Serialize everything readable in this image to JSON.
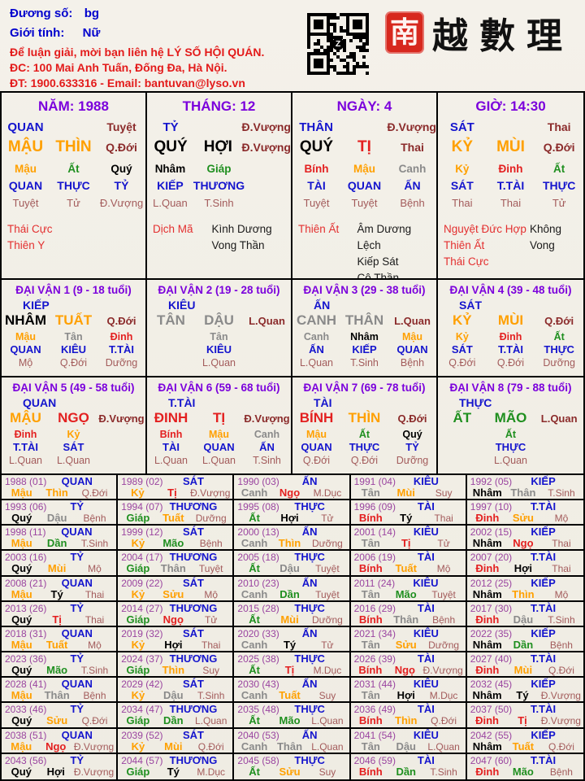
{
  "header": {
    "duong_so_label": "Đương số:",
    "duong_so_value": "bg",
    "gioi_tinh_label": "Giới tính:",
    "gioi_tinh_value": "Nữ",
    "contact_line1": "Để luận giải, mời bạn liên hệ LÝ SỐ HỘI QUÁN.",
    "contact_line2": "ĐC: 100 Mai Anh Tuấn, Đống Đa, Hà Nội.",
    "contact_line3": "ĐT: 1900.633316 - Email: bantuvan@lyso.vn",
    "logo_seal_char": "南",
    "logo_chars": "越數理"
  },
  "colors": {
    "wood": "#1F8F1F",
    "fire": "#E32020",
    "earth": "#FFA000",
    "metal": "#8A8A8A",
    "water": "#000000"
  },
  "element_of": {
    "Giáp": "wood",
    "Ất": "wood",
    "ẤT": "wood",
    "Bính": "fire",
    "BÍNH": "fire",
    "Đinh": "fire",
    "ĐINH": "fire",
    "Mậu": "earth",
    "MẬU": "earth",
    "Kỷ": "earth",
    "KỶ": "earth",
    "Canh": "metal",
    "CANH": "metal",
    "Tân": "metal",
    "TÂN": "metal",
    "Nhâm": "water",
    "NHÂM": "water",
    "Quý": "water",
    "QUÝ": "water",
    "Tý": "water",
    "Sửu": "earth",
    "Dần": "wood",
    "Mão": "wood",
    "MÃO": "wood",
    "Thìn": "earth",
    "THÌN": "earth",
    "Tị": "fire",
    "TỊ": "fire",
    "Ngọ": "fire",
    "NGỌ": "fire",
    "Mùi": "earth",
    "MÙI": "earth",
    "Thân": "metal",
    "THÂN": "metal",
    "Dậu": "metal",
    "DẬU": "metal",
    "Tuất": "earth",
    "TUẤT": "earth",
    "Hợi": "water",
    "HỢI": "water"
  },
  "pillars": [
    {
      "title": "NĂM: 1988",
      "god": "QUAN",
      "top_stage": "Tuyệt",
      "stem": "MẬU",
      "branch": "THÌN",
      "stage": "Q.Đới",
      "hidden": [
        {
          "s": "Mậu",
          "g": "QUAN",
          "st": "Tuyệt"
        },
        {
          "s": "Ất",
          "g": "THỰC",
          "st": "Tử"
        },
        {
          "s": "Quý",
          "g": "TỶ",
          "st": "Đ.Vượng"
        }
      ],
      "stars_red": [
        "Thái Cực",
        "Thiên Y"
      ],
      "stars_black": []
    },
    {
      "title": "THÁNG: 12",
      "god": "TỶ",
      "top_stage": "Đ.Vượng",
      "stem": "QUÝ",
      "branch": "HỢI",
      "stage": "Đ.Vượng",
      "hidden": [
        {
          "s": "Nhâm",
          "g": "KIẾP",
          "st": "L.Quan"
        },
        {
          "s": "Giáp",
          "g": "THƯƠNG",
          "st": "T.Sinh"
        },
        null
      ],
      "stars_red": [
        "Dịch Mã"
      ],
      "stars_black": [
        "Kình Dương",
        "Vong Thần"
      ]
    },
    {
      "title": "NGÀY: 4",
      "god": "THÂN",
      "top_stage": "Đ.Vượng",
      "stem": "QUÝ",
      "branch": "TỊ",
      "stage": "Thai",
      "hidden": [
        {
          "s": "Bính",
          "g": "TÀI",
          "st": "Tuyệt"
        },
        {
          "s": "Mậu",
          "g": "QUAN",
          "st": "Tuyệt"
        },
        {
          "s": "Canh",
          "g": "ẤN",
          "st": "Bệnh"
        }
      ],
      "stars_red": [
        "Thiên Ất"
      ],
      "stars_black": [
        "Âm Dương Lệch",
        "Kiếp Sát",
        "Cô Thần"
      ]
    },
    {
      "title": "GIỜ: 14:30",
      "god": "SÁT",
      "top_stage": "Thai",
      "stem": "KỶ",
      "branch": "MÙI",
      "stage": "Q.Đới",
      "hidden": [
        {
          "s": "Kỷ",
          "g": "SÁT",
          "st": "Thai"
        },
        {
          "s": "Đinh",
          "g": "T.TÀI",
          "st": "Thai"
        },
        {
          "s": "Ất",
          "g": "THỰC",
          "st": "Tử"
        }
      ],
      "stars_red": [
        "Nguyệt Đức Hợp",
        "Thiên Ất",
        "Thái Cực"
      ],
      "stars_black": [
        "Không Vong"
      ]
    }
  ],
  "dai_van": [
    {
      "title": "ĐẠI VẬN 1 (9 - 18 tuổi)",
      "god": "KIẾP",
      "stem": "NHÂM",
      "branch": "TUẤT",
      "stage": "Q.Đới",
      "hidden": [
        {
          "s": "Mậu",
          "g": "QUAN",
          "st": "Mộ"
        },
        {
          "s": "Tân",
          "g": "KIÊU",
          "st": "Q.Đới"
        },
        {
          "s": "Đinh",
          "g": "T.TÀI",
          "st": "Dưỡng"
        }
      ]
    },
    {
      "title": "ĐẠI VẬN 2 (19 - 28 tuổi)",
      "god": "KIÊU",
      "stem": "TÂN",
      "branch": "DẬU",
      "stage": "L.Quan",
      "hidden": [
        null,
        {
          "s": "Tân",
          "g": "KIÊU",
          "st": "L.Quan"
        },
        null
      ]
    },
    {
      "title": "ĐẠI VẬN 3 (29 - 38 tuổi)",
      "god": "ẤN",
      "stem": "CANH",
      "branch": "THÂN",
      "stage": "L.Quan",
      "hidden": [
        {
          "s": "Canh",
          "g": "ẤN",
          "st": "L.Quan"
        },
        {
          "s": "Nhâm",
          "g": "KIẾP",
          "st": "T.Sinh"
        },
        {
          "s": "Mậu",
          "g": "QUAN",
          "st": "Bệnh"
        }
      ]
    },
    {
      "title": "ĐẠI VẬN 4 (39 - 48 tuổi)",
      "god": "SÁT",
      "stem": "KỶ",
      "branch": "MÙI",
      "stage": "Q.Đới",
      "hidden": [
        {
          "s": "Kỷ",
          "g": "SÁT",
          "st": "Q.Đới"
        },
        {
          "s": "Đinh",
          "g": "T.TÀI",
          "st": "Q.Đới"
        },
        {
          "s": "Ất",
          "g": "THỰC",
          "st": "Dưỡng"
        }
      ]
    },
    {
      "title": "ĐẠI VẬN 5 (49 - 58 tuổi)",
      "god": "QUAN",
      "stem": "MẬU",
      "branch": "NGỌ",
      "stage": "Đ.Vượng",
      "hidden": [
        {
          "s": "Đinh",
          "g": "T.TÀI",
          "st": "L.Quan"
        },
        {
          "s": "Kỷ",
          "g": "SÁT",
          "st": "L.Quan"
        },
        null
      ]
    },
    {
      "title": "ĐẠI VẬN 6 (59 - 68 tuổi)",
      "god": "T.TÀI",
      "stem": "ĐINH",
      "branch": "TỊ",
      "stage": "Đ.Vượng",
      "hidden": [
        {
          "s": "Bính",
          "g": "TÀI",
          "st": "L.Quan"
        },
        {
          "s": "Mậu",
          "g": "QUAN",
          "st": "L.Quan"
        },
        {
          "s": "Canh",
          "g": "ẤN",
          "st": "T.Sinh"
        }
      ]
    },
    {
      "title": "ĐẠI VẬN 7 (69 - 78 tuổi)",
      "god": "TÀI",
      "stem": "BÍNH",
      "branch": "THÌN",
      "stage": "Q.Đới",
      "hidden": [
        {
          "s": "Mậu",
          "g": "QUAN",
          "st": "Q.Đới"
        },
        {
          "s": "Ất",
          "g": "THỰC",
          "st": "Q.Đới"
        },
        {
          "s": "Quý",
          "g": "TỶ",
          "st": "Dưỡng"
        }
      ]
    },
    {
      "title": "ĐẠI VẬN 8 (79 - 88 tuổi)",
      "god": "THỰC",
      "stem": "ẤT",
      "branch": "MÃO",
      "stage": "L.Quan",
      "hidden": [
        null,
        {
          "s": "Ất",
          "g": "THỰC",
          "st": "L.Quan"
        },
        null
      ]
    }
  ],
  "years": [
    [
      "1988",
      "(01)",
      "QUAN",
      "Mậu",
      "Thìn",
      "Q.Đới"
    ],
    [
      "1989",
      "(02)",
      "SÁT",
      "Kỷ",
      "Tị",
      "Đ.Vượng"
    ],
    [
      "1990",
      "(03)",
      "ẤN",
      "Canh",
      "Ngọ",
      "M.Dục"
    ],
    [
      "1991",
      "(04)",
      "KIÊU",
      "Tân",
      "Mùi",
      "Suy"
    ],
    [
      "1992",
      "(05)",
      "KIẾP",
      "Nhâm",
      "Thân",
      "T.Sinh"
    ],
    [
      "1993",
      "(06)",
      "TỶ",
      "Quý",
      "Dậu",
      "Bệnh"
    ],
    [
      "1994",
      "(07)",
      "THƯƠNG",
      "Giáp",
      "Tuất",
      "Dưỡng"
    ],
    [
      "1995",
      "(08)",
      "THỰC",
      "Ất",
      "Hợi",
      "Tử"
    ],
    [
      "1996",
      "(09)",
      "TÀI",
      "Bính",
      "Tý",
      "Thai"
    ],
    [
      "1997",
      "(10)",
      "T.TÀI",
      "Đinh",
      "Sửu",
      "Mộ"
    ],
    [
      "1998",
      "(11)",
      "QUAN",
      "Mậu",
      "Dần",
      "T.Sinh"
    ],
    [
      "1999",
      "(12)",
      "SÁT",
      "Kỷ",
      "Mão",
      "Bệnh"
    ],
    [
      "2000",
      "(13)",
      "ẤN",
      "Canh",
      "Thìn",
      "Dưỡng"
    ],
    [
      "2001",
      "(14)",
      "KIÊU",
      "Tân",
      "Tị",
      "Tử"
    ],
    [
      "2002",
      "(15)",
      "KIẾP",
      "Nhâm",
      "Ngọ",
      "Thai"
    ],
    [
      "2003",
      "(16)",
      "TỶ",
      "Quý",
      "Mùi",
      "Mộ"
    ],
    [
      "2004",
      "(17)",
      "THƯƠNG",
      "Giáp",
      "Thân",
      "Tuyệt"
    ],
    [
      "2005",
      "(18)",
      "THỰC",
      "Ất",
      "Dậu",
      "Tuyệt"
    ],
    [
      "2006",
      "(19)",
      "TÀI",
      "Bính",
      "Tuất",
      "Mộ"
    ],
    [
      "2007",
      "(20)",
      "T.TÀI",
      "Đinh",
      "Hợi",
      "Thai"
    ],
    [
      "2008",
      "(21)",
      "QUAN",
      "Mậu",
      "Tý",
      "Thai"
    ],
    [
      "2009",
      "(22)",
      "SÁT",
      "Kỷ",
      "Sửu",
      "Mộ"
    ],
    [
      "2010",
      "(23)",
      "ẤN",
      "Canh",
      "Dần",
      "Tuyệt"
    ],
    [
      "2011",
      "(24)",
      "KIÊU",
      "Tân",
      "Mão",
      "Tuyệt"
    ],
    [
      "2012",
      "(25)",
      "KIẾP",
      "Nhâm",
      "Thìn",
      "Mộ"
    ],
    [
      "2013",
      "(26)",
      "TỶ",
      "Quý",
      "Tị",
      "Thai"
    ],
    [
      "2014",
      "(27)",
      "THƯƠNG",
      "Giáp",
      "Ngọ",
      "Tử"
    ],
    [
      "2015",
      "(28)",
      "THỰC",
      "Ất",
      "Mùi",
      "Dưỡng"
    ],
    [
      "2016",
      "(29)",
      "TÀI",
      "Bính",
      "Thân",
      "Bệnh"
    ],
    [
      "2017",
      "(30)",
      "T.TÀI",
      "Đinh",
      "Dậu",
      "T.Sinh"
    ],
    [
      "2018",
      "(31)",
      "QUAN",
      "Mậu",
      "Tuất",
      "Mộ"
    ],
    [
      "2019",
      "(32)",
      "SÁT",
      "Kỷ",
      "Hợi",
      "Thai"
    ],
    [
      "2020",
      "(33)",
      "ẤN",
      "Canh",
      "Tý",
      "Tử"
    ],
    [
      "2021",
      "(34)",
      "KIÊU",
      "Tân",
      "Sửu",
      "Dưỡng"
    ],
    [
      "2022",
      "(35)",
      "KIẾP",
      "Nhâm",
      "Dần",
      "Bệnh"
    ],
    [
      "2023",
      "(36)",
      "TỶ",
      "Quý",
      "Mão",
      "T.Sinh"
    ],
    [
      "2024",
      "(37)",
      "THƯƠNG",
      "Giáp",
      "Thìn",
      "Suy"
    ],
    [
      "2025",
      "(38)",
      "THỰC",
      "Ất",
      "Tị",
      "M.Dục"
    ],
    [
      "2026",
      "(39)",
      "TÀI",
      "Bính",
      "Ngọ",
      "Đ.Vượng"
    ],
    [
      "2027",
      "(40)",
      "T.TÀI",
      "Đinh",
      "Mùi",
      "Q.Đới"
    ],
    [
      "2028",
      "(41)",
      "QUAN",
      "Mậu",
      "Thân",
      "Bệnh"
    ],
    [
      "2029",
      "(42)",
      "SÁT",
      "Kỷ",
      "Dậu",
      "T.Sinh"
    ],
    [
      "2030",
      "(43)",
      "ẤN",
      "Canh",
      "Tuất",
      "Suy"
    ],
    [
      "2031",
      "(44)",
      "KIÊU",
      "Tân",
      "Hợi",
      "M.Dục"
    ],
    [
      "2032",
      "(45)",
      "KIẾP",
      "Nhâm",
      "Tý",
      "Đ.Vượng"
    ],
    [
      "2033",
      "(46)",
      "TỶ",
      "Quý",
      "Sửu",
      "Q.Đới"
    ],
    [
      "2034",
      "(47)",
      "THƯƠNG",
      "Giáp",
      "Dần",
      "L.Quan"
    ],
    [
      "2035",
      "(48)",
      "THỰC",
      "Ất",
      "Mão",
      "L.Quan"
    ],
    [
      "2036",
      "(49)",
      "TÀI",
      "Bính",
      "Thìn",
      "Q.Đới"
    ],
    [
      "2037",
      "(50)",
      "T.TÀI",
      "Đinh",
      "Tị",
      "Đ.Vượng"
    ],
    [
      "2038",
      "(51)",
      "QUAN",
      "Mậu",
      "Ngọ",
      "Đ.Vượng"
    ],
    [
      "2039",
      "(52)",
      "SÁT",
      "Kỷ",
      "Mùi",
      "Q.Đới"
    ],
    [
      "2040",
      "(53)",
      "ẤN",
      "Canh",
      "Thân",
      "L.Quan"
    ],
    [
      "2041",
      "(54)",
      "KIÊU",
      "Tân",
      "Dậu",
      "L.Quan"
    ],
    [
      "2042",
      "(55)",
      "KIẾP",
      "Nhâm",
      "Tuất",
      "Q.Đới"
    ],
    [
      "2043",
      "(56)",
      "TỶ",
      "Quý",
      "Hợi",
      "Đ.Vượng"
    ],
    [
      "2044",
      "(57)",
      "THƯƠNG",
      "Giáp",
      "Tý",
      "M.Dục"
    ],
    [
      "2045",
      "(58)",
      "THỰC",
      "Ất",
      "Sửu",
      "Suy"
    ],
    [
      "2046",
      "(59)",
      "TÀI",
      "Bính",
      "Dần",
      "T.Sinh"
    ],
    [
      "2047",
      "(60)",
      "T.TÀI",
      "Đinh",
      "Mão",
      "Bệnh"
    ]
  ]
}
